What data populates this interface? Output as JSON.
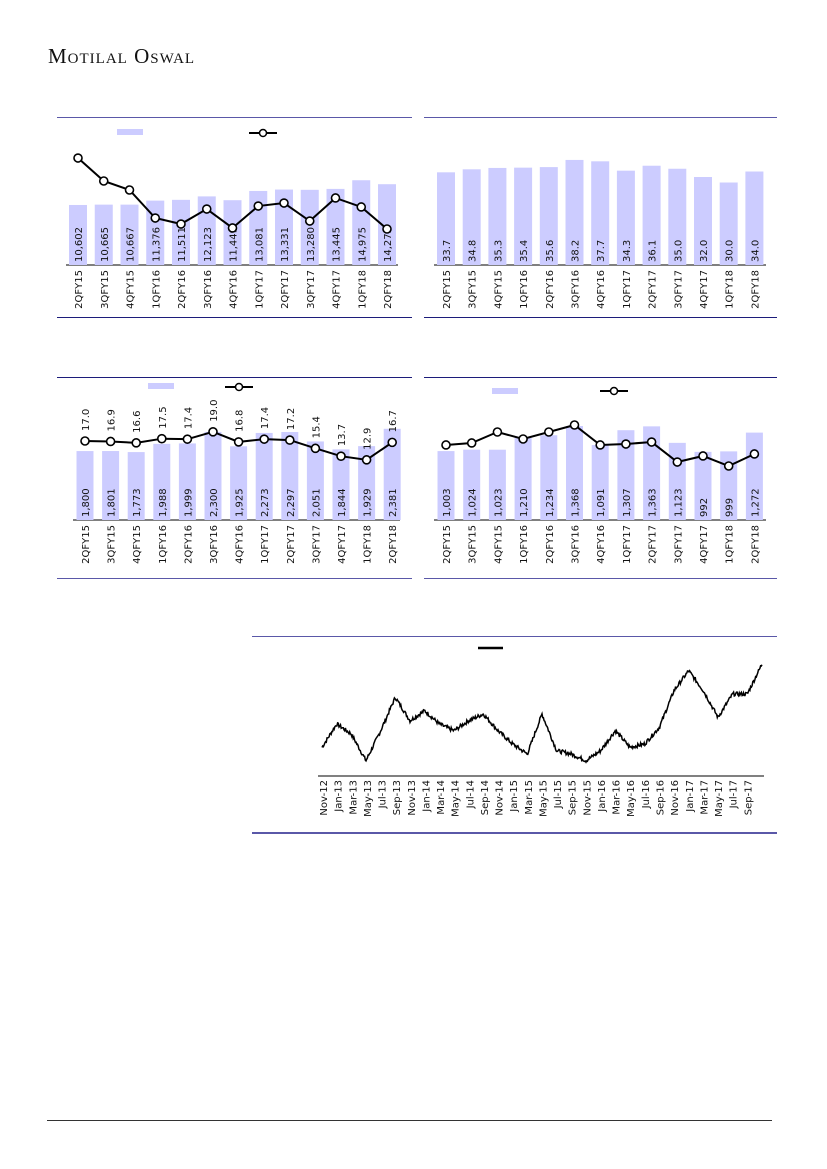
{
  "header": {
    "brand": "Motilal Oswal"
  },
  "colors": {
    "bar": "#ccccff",
    "line": "#000000",
    "rule_top": "#5a58a8",
    "rule_bottom": "#1c1c7a"
  },
  "chart_data": [
    {
      "type": "bar+line",
      "categories": [
        "2QFY15",
        "3QFY15",
        "4QFY15",
        "1QFY16",
        "2QFY16",
        "3QFY16",
        "4QFY16",
        "1QFY17",
        "2QFY17",
        "3QFY17",
        "4QFY17",
        "1QFY18",
        "2QFY18"
      ],
      "bar_values": [
        10602,
        10665,
        10667,
        11376,
        11511,
        12123,
        11449,
        13081,
        13331,
        13280,
        13445,
        14975,
        14275
      ],
      "bar_labels": [
        "10,602",
        "10,665",
        "10,667",
        "11,376",
        "11,511",
        "12,123",
        "11,449",
        "13,081",
        "13,331",
        "13,280",
        "13,445",
        "14,975",
        "14,275"
      ],
      "line_values_approx": [
        18900,
        14840,
        13250,
        8300,
        7240,
        9890,
        6540,
        10420,
        10950,
        7770,
        11840,
        10250,
        6360
      ],
      "legend": "top",
      "grid": false
    },
    {
      "type": "bar",
      "categories": [
        "2QFY15",
        "3QFY15",
        "4QFY15",
        "1QFY16",
        "2QFY16",
        "3QFY16",
        "4QFY16",
        "1QFY17",
        "2QFY17",
        "3QFY17",
        "4QFY17",
        "1QFY18",
        "2QFY18"
      ],
      "bar_values": [
        33.7,
        34.8,
        35.3,
        35.4,
        35.6,
        38.2,
        37.7,
        34.3,
        36.1,
        35.0,
        32.0,
        30.0,
        34.0
      ],
      "bar_labels": [
        "33.7",
        "34.8",
        "35.3",
        "35.4",
        "35.6",
        "38.2",
        "37.7",
        "34.3",
        "36.1",
        "35.0",
        "32.0",
        "30.0",
        "34.0"
      ],
      "grid": false
    },
    {
      "type": "bar+line",
      "categories": [
        "2QFY15",
        "3QFY15",
        "4QFY15",
        "1QFY16",
        "2QFY16",
        "3QFY16",
        "4QFY16",
        "1QFY17",
        "2QFY17",
        "3QFY17",
        "4QFY17",
        "1QFY18",
        "2QFY18"
      ],
      "bar_values": [
        1800,
        1801,
        1773,
        1988,
        1999,
        2300,
        1925,
        2273,
        2297,
        2051,
        1844,
        1929,
        2381
      ],
      "bar_labels": [
        "1,800",
        "1,801",
        "1,773",
        "1,988",
        "1,999",
        "2,300",
        "1,925",
        "2,273",
        "2,297",
        "2,051",
        "1,844",
        "1,929",
        "2,381"
      ],
      "line_values": [
        17.0,
        16.9,
        16.6,
        17.5,
        17.4,
        19.0,
        16.8,
        17.4,
        17.2,
        15.4,
        13.7,
        12.9,
        16.7
      ],
      "line_labels": [
        "17.0",
        "16.9",
        "16.6",
        "17.5",
        "17.4",
        "19.0",
        "16.8",
        "17.4",
        "17.2",
        "15.4",
        "13.7",
        "12.9",
        "16.7"
      ],
      "legend": "top",
      "grid": false
    },
    {
      "type": "bar+line",
      "categories": [
        "2QFY15",
        "3QFY15",
        "4QFY15",
        "1QFY16",
        "2QFY16",
        "3QFY16",
        "4QFY16",
        "1QFY17",
        "2QFY17",
        "3QFY17",
        "4QFY17",
        "1QFY18",
        "2QFY18"
      ],
      "bar_values": [
        1003,
        1024,
        1023,
        1210,
        1234,
        1368,
        1091,
        1307,
        1363,
        1123,
        992,
        999,
        1272
      ],
      "bar_labels": [
        "1,003",
        "1,024",
        "1,023",
        "1,210",
        "1,234",
        "1,368",
        "1,091",
        "1,307",
        "1,363",
        "1,123",
        "992",
        "999",
        "1,272"
      ],
      "line_values_approx": [
        1092,
        1121,
        1281,
        1179,
        1281,
        1383,
        1092,
        1106,
        1135,
        844,
        932,
        786,
        961
      ],
      "legend": "top",
      "grid": false
    },
    {
      "type": "line",
      "x_ticks": [
        "Nov-12",
        "Jan-13",
        "Mar-13",
        "May-13",
        "Jul-13",
        "Sep-13",
        "Nov-13",
        "Jan-14",
        "Mar-14",
        "May-14",
        "Jul-14",
        "Sep-14",
        "Nov-14",
        "Jan-15",
        "Mar-15",
        "May-15",
        "Jul-15",
        "Sep-15",
        "Nov-15",
        "Jan-16",
        "Mar-16",
        "May-16",
        "Jul-16",
        "Sep-16",
        "Nov-16",
        "Jan-17",
        "Mar-17",
        "May-17",
        "Jul-17",
        "Sep-17"
      ],
      "values_approx_relative": [
        68,
        138,
        108,
        28,
        118,
        218,
        148,
        178,
        138,
        118,
        148,
        168,
        118,
        78,
        48,
        168,
        58,
        48,
        28,
        58,
        118,
        68,
        78,
        128,
        238,
        298,
        238,
        158,
        228,
        228,
        318
      ],
      "legend": "top",
      "grid": false
    }
  ]
}
